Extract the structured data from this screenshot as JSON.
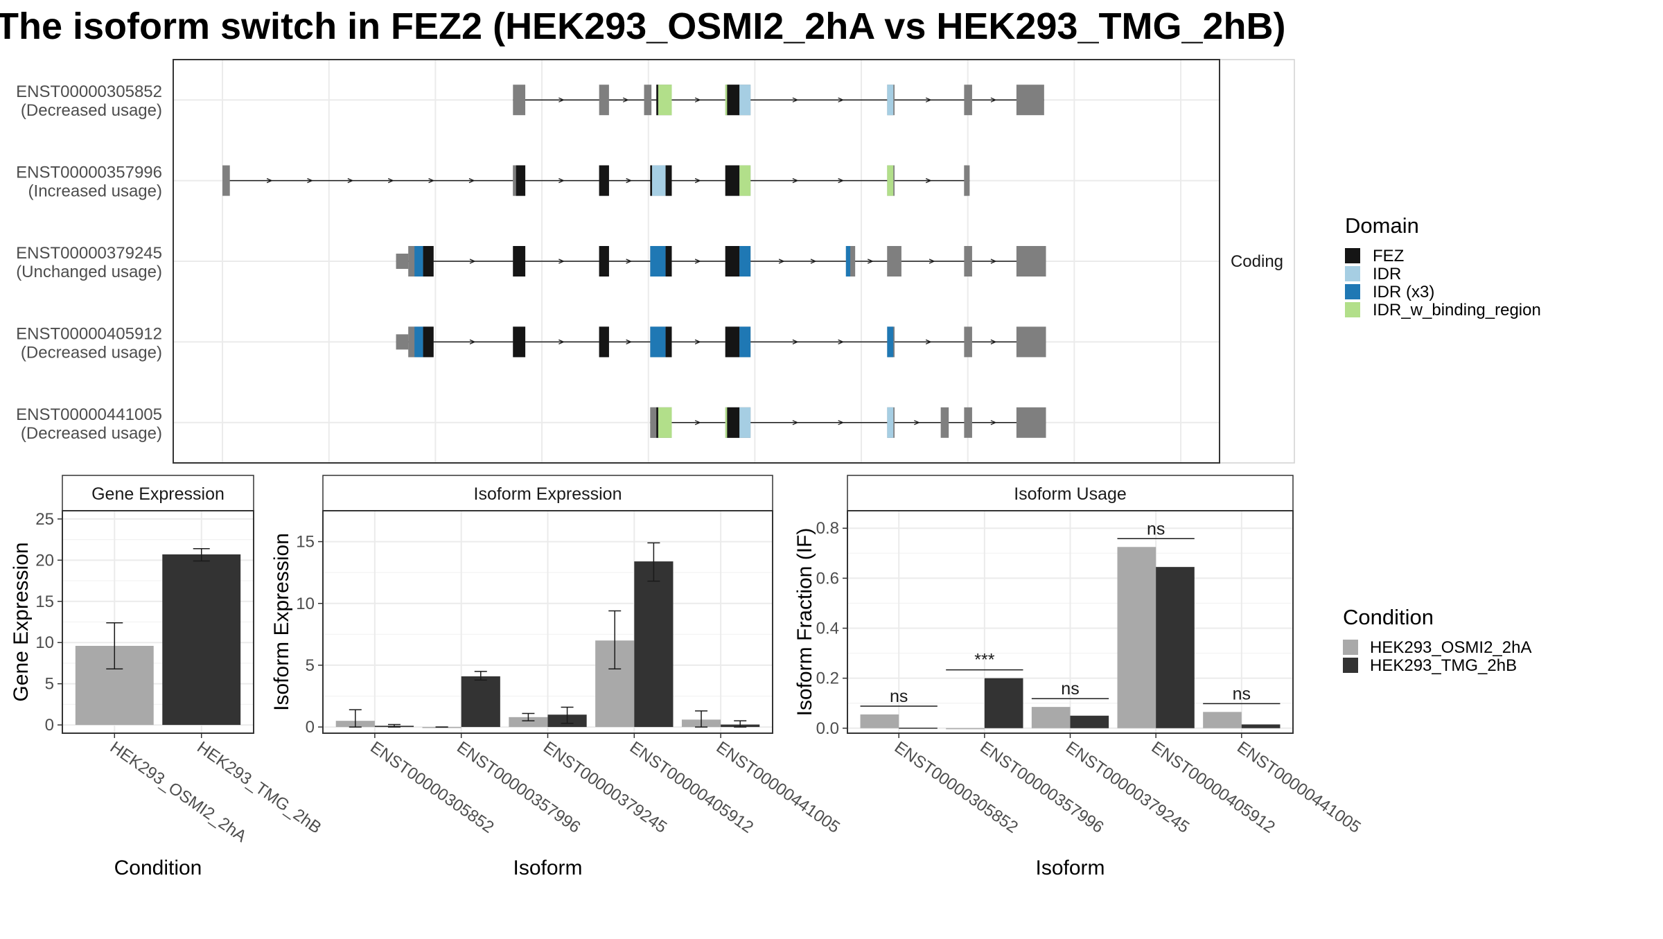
{
  "title": "The isoform switch in FEZ2 (HEK293_OSMI2_2hA vs HEK293_TMG_2hB)",
  "colors": {
    "FEZ": "#151515",
    "IDR": "#a6cee3",
    "IDR (x3)": "#1f78b4",
    "IDR_w_binding_region": "#b2df8a",
    "noncoding": "#7f7f7f",
    "cond1": "#a9a9a9",
    "cond2": "#333333"
  },
  "structure": {
    "strip_label": "Coding",
    "genomic_ticks": [
      80,
      253,
      426,
      599,
      772,
      945,
      1118,
      1291,
      1464,
      1637
    ],
    "xlim": [
      0,
      1700
    ],
    "isoforms": [
      {
        "id": "ENST00000305852",
        "usage": "(Decreased usage)",
        "exons": [
          [
            552,
            572,
            "thick"
          ],
          [
            692,
            708,
            "thick"
          ],
          [
            765,
            777,
            "thick"
          ],
          [
            785,
            810,
            "thick"
          ],
          [
            897,
            938,
            "thick"
          ],
          [
            1160,
            1172,
            "thick"
          ],
          [
            1285,
            1298,
            "thick"
          ],
          [
            1370,
            1415,
            "thick"
          ]
        ],
        "domains": [
          [
            785,
            788,
            "FEZ"
          ],
          [
            788,
            810,
            "IDR_w_binding_region"
          ],
          [
            897,
            900,
            "IDR_w_binding_region"
          ],
          [
            900,
            920,
            "FEZ"
          ],
          [
            920,
            938,
            "IDR"
          ],
          [
            1160,
            1170,
            "IDR"
          ]
        ]
      },
      {
        "id": "ENST00000357996",
        "usage": "(Increased usage)",
        "exons": [
          [
            80,
            92,
            "thick"
          ],
          [
            552,
            572,
            "thick"
          ],
          [
            692,
            708,
            "thick"
          ],
          [
            775,
            810,
            "thick"
          ],
          [
            897,
            938,
            "thick"
          ],
          [
            1160,
            1172,
            "thick"
          ],
          [
            1285,
            1294,
            "thick"
          ]
        ],
        "domains": [
          [
            552,
            557,
            "UTR"
          ],
          [
            557,
            572,
            "FEZ"
          ],
          [
            692,
            708,
            "FEZ"
          ],
          [
            775,
            778,
            "FEZ"
          ],
          [
            778,
            800,
            "IDR"
          ],
          [
            800,
            810,
            "FEZ"
          ],
          [
            897,
            920,
            "FEZ"
          ],
          [
            920,
            938,
            "IDR_w_binding_region"
          ],
          [
            1160,
            1170,
            "IDR_w_binding_region"
          ],
          [
            1285,
            1290,
            "UTR"
          ]
        ]
      },
      {
        "id": "ENST00000379245",
        "usage": "(Unchanged usage)",
        "exons": [
          [
            362,
            382,
            "thin"
          ],
          [
            382,
            423,
            "thick"
          ],
          [
            552,
            572,
            "thick"
          ],
          [
            692,
            708,
            "thick"
          ],
          [
            775,
            810,
            "thick"
          ],
          [
            897,
            938,
            "thick"
          ],
          [
            1093,
            1108,
            "thick"
          ],
          [
            1160,
            1183,
            "thick"
          ],
          [
            1285,
            1298,
            "thick"
          ],
          [
            1370,
            1418,
            "thick"
          ]
        ],
        "domains": [
          [
            382,
            392,
            "UTR"
          ],
          [
            392,
            406,
            "IDR (x3)"
          ],
          [
            406,
            423,
            "FEZ"
          ],
          [
            552,
            572,
            "FEZ"
          ],
          [
            692,
            708,
            "FEZ"
          ],
          [
            775,
            800,
            "IDR (x3)"
          ],
          [
            800,
            810,
            "FEZ"
          ],
          [
            897,
            920,
            "FEZ"
          ],
          [
            920,
            938,
            "IDR (x3)"
          ],
          [
            1093,
            1100,
            "IDR (x3)"
          ],
          [
            1160,
            1183,
            "UTR"
          ]
        ]
      },
      {
        "id": "ENST00000405912",
        "usage": "(Decreased usage)",
        "exons": [
          [
            362,
            382,
            "thin"
          ],
          [
            382,
            423,
            "thick"
          ],
          [
            552,
            572,
            "thick"
          ],
          [
            692,
            708,
            "thick"
          ],
          [
            775,
            810,
            "thick"
          ],
          [
            897,
            938,
            "thick"
          ],
          [
            1160,
            1172,
            "thick"
          ],
          [
            1285,
            1298,
            "thick"
          ],
          [
            1370,
            1418,
            "thick"
          ]
        ],
        "domains": [
          [
            382,
            392,
            "UTR"
          ],
          [
            392,
            406,
            "IDR (x3)"
          ],
          [
            406,
            423,
            "FEZ"
          ],
          [
            552,
            572,
            "FEZ"
          ],
          [
            692,
            708,
            "FEZ"
          ],
          [
            775,
            800,
            "IDR (x3)"
          ],
          [
            800,
            810,
            "FEZ"
          ],
          [
            897,
            920,
            "FEZ"
          ],
          [
            920,
            938,
            "IDR (x3)"
          ],
          [
            1160,
            1170,
            "IDR (x3)"
          ]
        ]
      },
      {
        "id": "ENST00000441005",
        "usage": "(Decreased usage)",
        "exons": [
          [
            775,
            810,
            "thick"
          ],
          [
            897,
            938,
            "thick"
          ],
          [
            1160,
            1172,
            "thick"
          ],
          [
            1247,
            1260,
            "thick"
          ],
          [
            1285,
            1298,
            "thick"
          ],
          [
            1370,
            1418,
            "thick"
          ]
        ],
        "domains": [
          [
            775,
            785,
            "UTR"
          ],
          [
            785,
            788,
            "FEZ"
          ],
          [
            788,
            810,
            "IDR_w_binding_region"
          ],
          [
            897,
            900,
            "IDR_w_binding_region"
          ],
          [
            900,
            920,
            "FEZ"
          ],
          [
            920,
            938,
            "IDR"
          ],
          [
            1160,
            1170,
            "IDR"
          ]
        ]
      }
    ]
  },
  "legend_domain": {
    "title": "Domain",
    "items": [
      "FEZ",
      "IDR",
      "IDR (x3)",
      "IDR_w_binding_region"
    ]
  },
  "legend_condition": {
    "title": "Condition",
    "items": [
      "HEK293_OSMI2_2hA",
      "HEK293_TMG_2hB"
    ]
  },
  "chart_data": [
    {
      "type": "bar",
      "panel_title": "Gene Expression",
      "categories": [
        "HEK293_OSMI2_2hA",
        "HEK293_TMG_2hB"
      ],
      "values": [
        9.6,
        20.7
      ],
      "err_low": [
        6.8,
        19.9
      ],
      "err_high": [
        12.4,
        21.4
      ],
      "xlabel": "Condition",
      "ylabel": "Gene Expression",
      "ylim": [
        -1,
        26
      ],
      "yticks": [
        0,
        5,
        10,
        15,
        20,
        25
      ]
    },
    {
      "type": "bar",
      "panel_title": "Isoform Expression",
      "categories": [
        "ENST00000305852",
        "ENST00000357996",
        "ENST00000379245",
        "ENST00000405912",
        "ENST00000441005"
      ],
      "series": [
        {
          "name": "HEK293_OSMI2_2hA",
          "values": [
            0.5,
            0.0,
            0.8,
            7.0,
            0.6
          ],
          "err_low": [
            0.0,
            0.0,
            0.5,
            4.7,
            0.0
          ],
          "err_high": [
            1.4,
            0.0,
            1.1,
            9.4,
            1.3
          ]
        },
        {
          "name": "HEK293_TMG_2hB",
          "values": [
            0.1,
            4.1,
            1.0,
            13.4,
            0.2
          ],
          "err_low": [
            0.0,
            3.8,
            0.3,
            11.8,
            0.0
          ],
          "err_high": [
            0.2,
            4.5,
            1.6,
            14.9,
            0.5
          ]
        }
      ],
      "xlabel": "Isoform",
      "ylabel": "Isoform Expression",
      "ylim": [
        -0.5,
        17.5
      ],
      "yticks": [
        0,
        5,
        10,
        15
      ]
    },
    {
      "type": "bar",
      "panel_title": "Isoform Usage",
      "categories": [
        "ENST00000305852",
        "ENST00000357996",
        "ENST00000379245",
        "ENST00000405912",
        "ENST00000441005"
      ],
      "series": [
        {
          "name": "HEK293_OSMI2_2hA",
          "values": [
            0.055,
            0.0,
            0.085,
            0.725,
            0.065
          ]
        },
        {
          "name": "HEK293_TMG_2hB",
          "values": [
            0.002,
            0.2,
            0.05,
            0.645,
            0.015
          ]
        }
      ],
      "significance": [
        "ns",
        "***",
        "ns",
        "ns",
        "ns"
      ],
      "xlabel": "Isoform",
      "ylabel": "Isoform Fraction (IF)",
      "ylim": [
        -0.02,
        0.87
      ],
      "yticks": [
        0.0,
        0.2,
        0.4,
        0.6,
        0.8
      ],
      "ytick_labels": [
        "0.0",
        "0.2",
        "0.4",
        "0.6",
        "0.8"
      ]
    }
  ]
}
